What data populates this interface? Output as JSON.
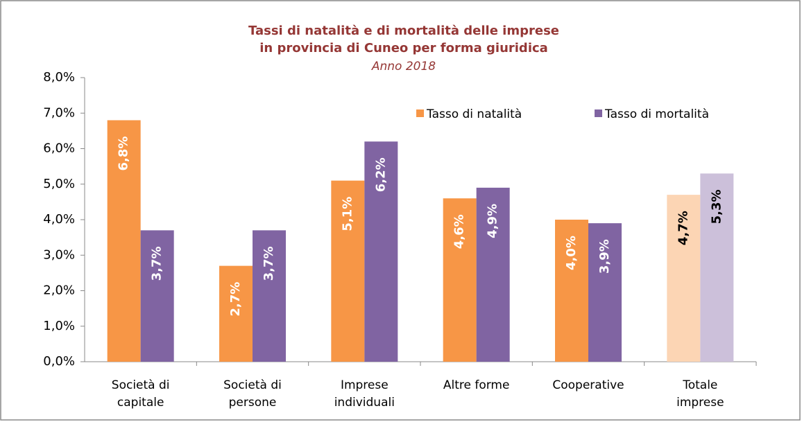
{
  "chart_data": {
    "type": "bar",
    "title": [
      "Tassi di natalità e di mortalità delle imprese",
      "in provincia di Cuneo per forma giuridica"
    ],
    "subtitle": "Anno 2018",
    "categories": [
      [
        "Società di",
        "capitale"
      ],
      [
        "Società di",
        "persone"
      ],
      [
        "Imprese",
        "individuali"
      ],
      [
        "Altre forme"
      ],
      [
        "Cooperative"
      ],
      [
        "Totale",
        "imprese"
      ]
    ],
    "series": [
      {
        "name": "Tasso di natalità",
        "color": "#f79646",
        "colors": [
          "#f79646",
          "#f79646",
          "#f79646",
          "#f79646",
          "#f79646",
          "#fcd5b4"
        ],
        "values": [
          6.8,
          2.7,
          5.1,
          4.6,
          4.0,
          4.7
        ],
        "value_labels": [
          "6,8%",
          "2,7%",
          "5,1%",
          "4,6%",
          "4,0%",
          "4,7%"
        ]
      },
      {
        "name": "Tasso di mortalità",
        "color": "#8064a2",
        "colors": [
          "#8064a2",
          "#8064a2",
          "#8064a2",
          "#8064a2",
          "#8064a2",
          "#ccc0da"
        ],
        "values": [
          3.7,
          3.7,
          6.2,
          4.9,
          3.9,
          5.3
        ],
        "value_labels": [
          "3,7%",
          "3,7%",
          "6,2%",
          "4,9%",
          "3,9%",
          "5,3%"
        ]
      }
    ],
    "ylim": [
      0,
      8
    ],
    "yticks": [
      {
        "value": 0,
        "label": "0,0%"
      },
      {
        "value": 1,
        "label": "1,0%"
      },
      {
        "value": 2,
        "label": "2,0%"
      },
      {
        "value": 3,
        "label": "3,0%"
      },
      {
        "value": 4,
        "label": "4,0%"
      },
      {
        "value": 5,
        "label": "5,0%"
      },
      {
        "value": 6,
        "label": "6,0%"
      },
      {
        "value": 7,
        "label": "7,0%"
      },
      {
        "value": 8,
        "label": "8,0%"
      }
    ],
    "grid": false,
    "legend": "top-right"
  }
}
